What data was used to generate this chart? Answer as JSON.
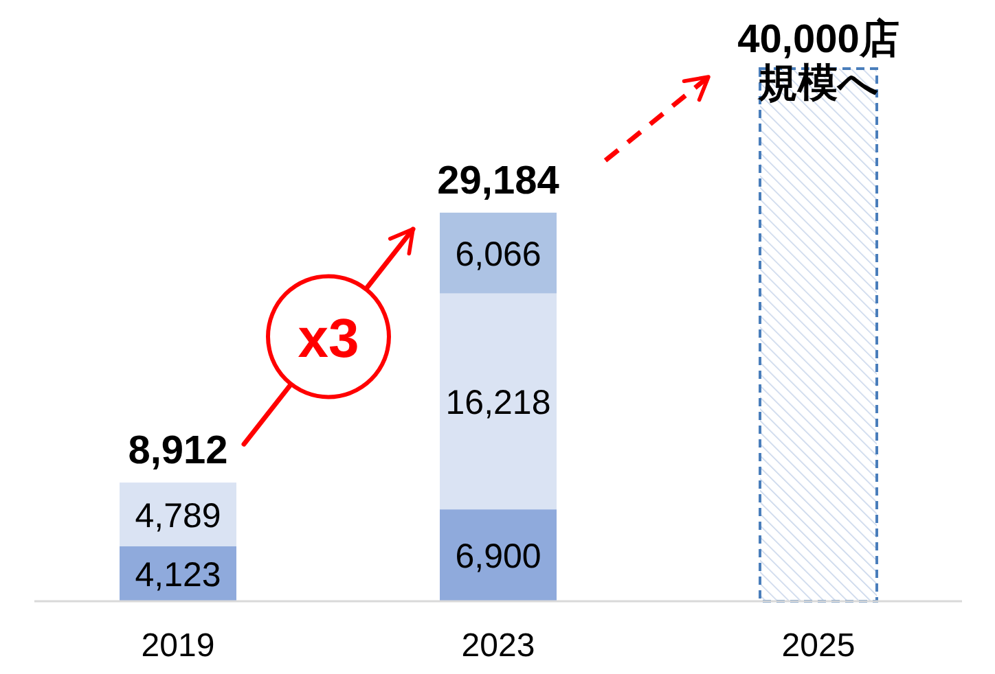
{
  "chart_data": {
    "type": "bar",
    "stacked": true,
    "relative": false,
    "categories": [
      "2019",
      "2023",
      "2025"
    ],
    "series": [
      {
        "color": "#8faadc",
        "values": [
          4123,
          6900,
          null
        ],
        "value_labels": [
          "4,123",
          "6,900",
          null
        ]
      },
      {
        "color": "#dae3f3",
        "values": [
          4789,
          16218,
          null
        ],
        "value_labels": [
          "4,789",
          "16,218",
          null
        ]
      },
      {
        "color": "#adc3e4",
        "values": [
          null,
          6066,
          null
        ],
        "value_labels": [
          null,
          "6,066",
          null
        ]
      },
      {
        "color": "#4a7ebb",
        "line_style": "dashed",
        "values": [
          null,
          null,
          40000
        ],
        "value_labels": [
          null,
          null,
          null
        ]
      }
    ],
    "totals": [
      "8,912",
      "29,184",
      "40,000店規模へ"
    ],
    "annotations": [
      "x3"
    ],
    "grid": false
  }
}
